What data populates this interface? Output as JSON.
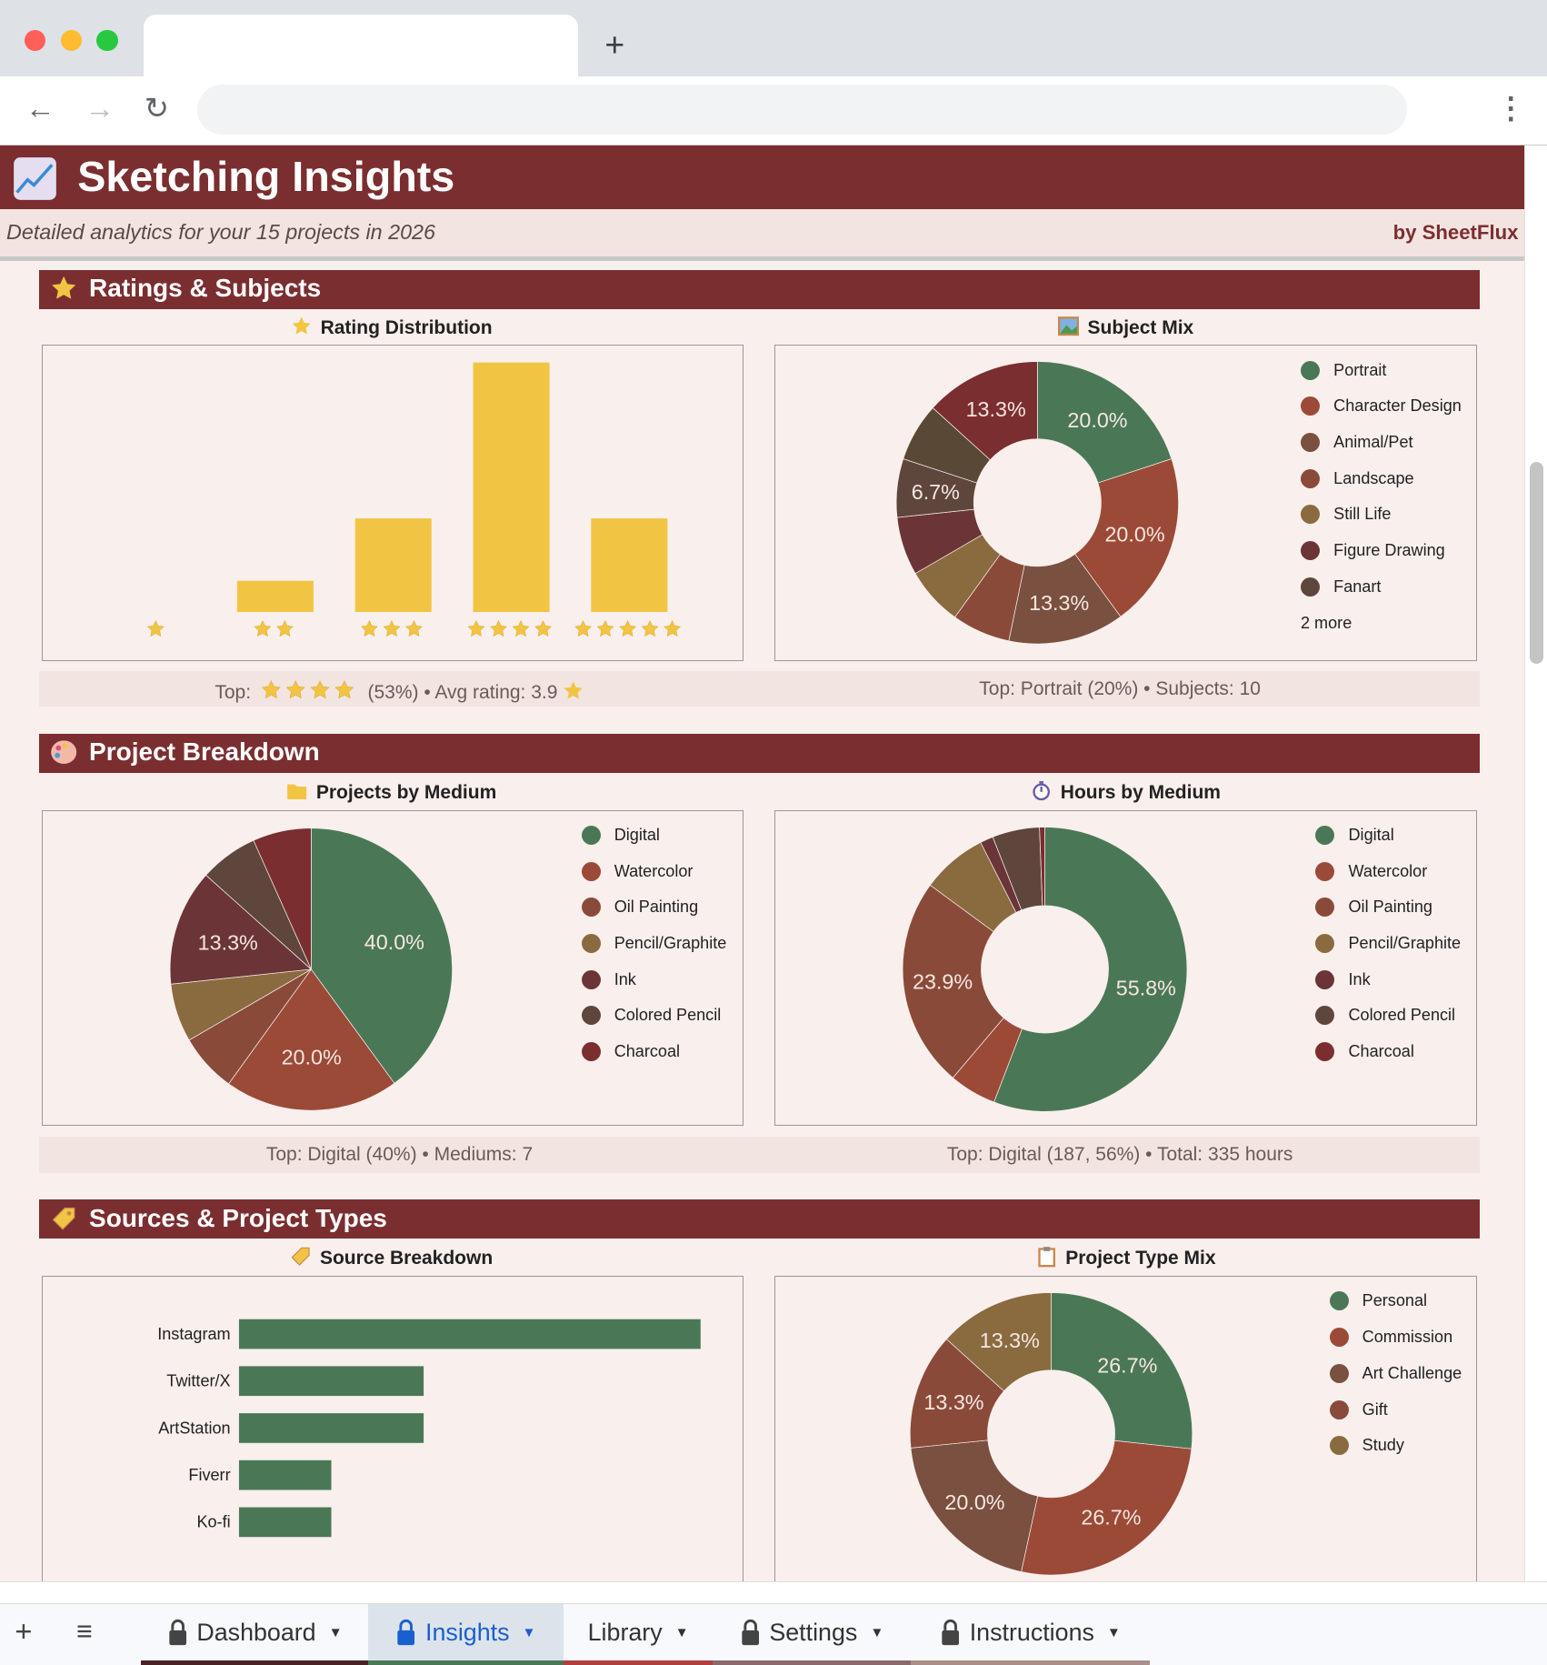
{
  "browser": {
    "new_tab": "+",
    "menu": "⋮"
  },
  "header": {
    "title": "Sketching Insights",
    "subtitle": "Detailed analytics for your 15 projects in 2026",
    "brand": "by SheetFlux"
  },
  "colors": {
    "accent": "#7b2e30",
    "green": "#4a7857"
  },
  "sections": [
    {
      "title": "Ratings & Subjects",
      "icon": "star-icon"
    },
    {
      "title": "Project Breakdown",
      "icon": "palette-icon"
    },
    {
      "title": "Sources & Project Types",
      "icon": "tag-icon"
    }
  ],
  "summaries": {
    "ratings": {
      "prefix": "Top:",
      "suffix": "(53%) • Avg rating: 3.9"
    },
    "subjects": "Top: Portrait (20%) • Subjects: 10",
    "medium": "Top: Digital (40%) • Mediums: 7",
    "hours": "Top: Digital (187, 56%) • Total: 335 hours"
  },
  "chart_data": [
    {
      "id": "rating",
      "type": "bar",
      "title": "Rating Distribution",
      "categories": [
        "★",
        "★★",
        "★★★",
        "★★★★",
        "★★★★★"
      ],
      "values": [
        0,
        1,
        3,
        8,
        3
      ],
      "color": "#f2c443"
    },
    {
      "id": "subject",
      "type": "pie",
      "donut": true,
      "title": "Subject Mix",
      "labels": [
        "Portrait",
        "Character Design",
        "Animal/Pet",
        "Landscape",
        "Still Life",
        "Figure Drawing",
        "Fanart",
        "",
        ""
      ],
      "values": [
        20.0,
        20.0,
        13.3,
        6.7,
        6.7,
        6.7,
        6.7,
        6.7,
        13.3
      ],
      "slice_labels": [
        "20.0%",
        "20.0%",
        "13.3%",
        "",
        "",
        "",
        "6.7%",
        "",
        "13.3%"
      ],
      "colors": [
        "#4a7857",
        "#9b4a38",
        "#7a5040",
        "#8a4a3a",
        "#8a6a3f",
        "#6b3538",
        "#5e463c",
        "#5a4837",
        "#7b2e30"
      ],
      "legend_more": "2 more"
    },
    {
      "id": "medium",
      "type": "pie",
      "donut": false,
      "title": "Projects by Medium",
      "labels": [
        "Digital",
        "Watercolor",
        "Oil Painting",
        "Pencil/Graphite",
        "Ink",
        "Colored Pencil",
        "Charcoal"
      ],
      "values": [
        40.0,
        20.0,
        6.7,
        6.7,
        13.3,
        6.7,
        6.7
      ],
      "slice_labels": [
        "40.0%",
        "20.0%",
        "",
        "",
        "13.3%",
        "",
        ""
      ],
      "colors": [
        "#4a7857",
        "#9b4a38",
        "#8a4a3a",
        "#8a6a3f",
        "#6b3538",
        "#5e463c",
        "#7b2e30"
      ]
    },
    {
      "id": "hours",
      "type": "pie",
      "donut": true,
      "title": "Hours by Medium",
      "labels": [
        "Digital",
        "Watercolor",
        "Oil Painting",
        "Pencil/Graphite",
        "Ink",
        "Colored Pencil",
        "Charcoal"
      ],
      "values": [
        187,
        18,
        80,
        25,
        5,
        18,
        2
      ],
      "slice_labels": [
        "55.8%",
        "",
        "23.9%",
        "",
        "",
        "",
        ""
      ],
      "colors": [
        "#4a7857",
        "#9b4a38",
        "#8a4a3a",
        "#8a6a3f",
        "#6b3538",
        "#5e463c",
        "#7b2e30"
      ]
    },
    {
      "id": "source",
      "type": "bar",
      "orientation": "horizontal",
      "title": "Source Breakdown",
      "categories": [
        "Instagram",
        "Twitter/X",
        "ArtStation",
        "Fiverr",
        "Ko-fi"
      ],
      "values": [
        5,
        2,
        2,
        1,
        1
      ],
      "color": "#4a7857"
    },
    {
      "id": "ptype",
      "type": "pie",
      "donut": true,
      "title": "Project Type Mix",
      "labels": [
        "Personal",
        "Commission",
        "Art Challenge",
        "Gift",
        "Study"
      ],
      "values": [
        26.7,
        26.7,
        20.0,
        13.3,
        13.3
      ],
      "slice_labels": [
        "26.7%",
        "26.7%",
        "20.0%",
        "13.3%",
        "13.3%"
      ],
      "colors": [
        "#4a7857",
        "#9b4a38",
        "#7a5040",
        "#8a4a3a",
        "#8a6a3f"
      ]
    }
  ],
  "sheet_tabs": [
    {
      "label": "Dashboard",
      "locked": true,
      "color": "#4a2424",
      "active": false
    },
    {
      "label": "Insights",
      "locked": true,
      "color": "#4a7857",
      "active": true
    },
    {
      "label": "Library",
      "locked": false,
      "color": "#b04040",
      "active": false
    },
    {
      "label": "Settings",
      "locked": true,
      "color": "#8a6a6a",
      "active": false
    },
    {
      "label": "Instructions",
      "locked": true,
      "color": "#a89088",
      "active": false
    }
  ]
}
